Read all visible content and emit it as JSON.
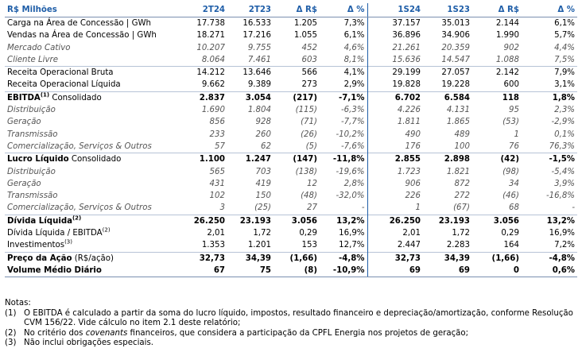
{
  "headers": {
    "label": "R$ Milhões",
    "cols": [
      "2T24",
      "2T23",
      "Δ R$",
      "Δ %",
      "1S24",
      "1S23",
      "Δ R$",
      "Δ %"
    ]
  },
  "rows": [
    {
      "label": "Carga na Área de Concessão | GWh",
      "vals": [
        "17.738",
        "16.533",
        "1.205",
        "7,3%",
        "37.157",
        "35.013",
        "2.144",
        "6,1%"
      ]
    },
    {
      "label": "Vendas na Área de Concessão | GWh",
      "vals": [
        "18.271",
        "17.216",
        "1.055",
        "6,1%",
        "36.896",
        "34.906",
        "1.990",
        "5,7%"
      ]
    },
    {
      "label": "Mercado Cativo",
      "vals": [
        "10.207",
        "9.755",
        "452",
        "4,6%",
        "21.261",
        "20.359",
        "902",
        "4,4%"
      ]
    },
    {
      "label": "Cliente Livre",
      "vals": [
        "8.064",
        "7.461",
        "603",
        "8,1%",
        "15.636",
        "14.547",
        "1.088",
        "7,5%"
      ]
    },
    {
      "label": "Receita Operacional Bruta",
      "vals": [
        "14.212",
        "13.646",
        "566",
        "4,1%",
        "29.199",
        "27.057",
        "2.142",
        "7,9%"
      ]
    },
    {
      "label": "Receita Operacional Líquida",
      "vals": [
        "9.662",
        "9.389",
        "273",
        "2,9%",
        "19.828",
        "19.228",
        "600",
        "3,1%"
      ]
    },
    {
      "label": "EBITDA",
      "sup": "(1)",
      "rest": " Consolidado",
      "vals": [
        "2.837",
        "3.054",
        "(217)",
        "-7,1%",
        "6.702",
        "6.584",
        "118",
        "1,8%"
      ]
    },
    {
      "label": "Distribuição",
      "vals": [
        "1.690",
        "1.804",
        "(115)",
        "-6,3%",
        "4.226",
        "4.131",
        "95",
        "2,3%"
      ]
    },
    {
      "label": "Geração",
      "vals": [
        "856",
        "928",
        "(71)",
        "-7,7%",
        "1.811",
        "1.865",
        "(53)",
        "-2,9%"
      ]
    },
    {
      "label": "Transmissão",
      "vals": [
        "233",
        "260",
        "(26)",
        "-10,2%",
        "490",
        "489",
        "1",
        "0,1%"
      ]
    },
    {
      "label": "Comercialização, Serviços & Outros",
      "vals": [
        "57",
        "62",
        "(5)",
        "-7,6%",
        "176",
        "100",
        "76",
        "76,3%"
      ]
    },
    {
      "label": "Lucro Líquido",
      "rest": " Consolidado",
      "vals": [
        "1.100",
        "1.247",
        "(147)",
        "-11,8%",
        "2.855",
        "2.898",
        "(42)",
        "-1,5%"
      ]
    },
    {
      "label": "Distribuição",
      "vals": [
        "565",
        "703",
        "(138)",
        "-19,6%",
        "1.723",
        "1.821",
        "(98)",
        "-5,4%"
      ]
    },
    {
      "label": "Geração",
      "vals": [
        "431",
        "419",
        "12",
        "2,8%",
        "906",
        "872",
        "34",
        "3,9%"
      ]
    },
    {
      "label": "Transmissão",
      "vals": [
        "102",
        "150",
        "(48)",
        "-32,0%",
        "226",
        "272",
        "(46)",
        "-16,8%"
      ]
    },
    {
      "label": "Comercialização, Serviços & Outros",
      "vals": [
        "3",
        "(25)",
        "27",
        "-",
        "1",
        "(67)",
        "68",
        "-"
      ]
    },
    {
      "label": "Dívida Líquida",
      "sup": "(2)",
      "vals": [
        "26.250",
        "23.193",
        "3.056",
        "13,2%",
        "26.250",
        "23.193",
        "3.056",
        "13,2%"
      ]
    },
    {
      "label": "Dívida Líquida / EBITDA",
      "sup": "(2)",
      "vals": [
        "2,01",
        "1,72",
        "0,29",
        "16,9%",
        "2,01",
        "1,72",
        "0,29",
        "16,9%"
      ]
    },
    {
      "label": "Investimentos",
      "sup": "(3)",
      "vals": [
        "1.353",
        "1.201",
        "153",
        "12,7%",
        "2.447",
        "2.283",
        "164",
        "7,2%"
      ]
    },
    {
      "label": "Preço da Ação",
      "rest": " (R$/ação)",
      "vals": [
        "32,73",
        "34,39",
        "(1,66)",
        "-4,8%",
        "32,73",
        "34,39",
        "(1,66)",
        "-4,8%"
      ]
    },
    {
      "label": "Volume Médio Diário",
      "vals": [
        "67",
        "75",
        "(8)",
        "-10,9%",
        "69",
        "69",
        "0",
        "0,6%"
      ]
    }
  ],
  "notes": {
    "title": "Notas:",
    "items": [
      {
        "mark": "(1)",
        "text": "O EBITDA é calculado a partir da soma do lucro líquido, impostos, resultado financeiro e depreciação/amortização, conforme Resolução CVM 156/22. Vide cálculo no item 2.1 deste relatório;"
      },
      {
        "mark": "(2)",
        "text_before": "No critério dos ",
        "text_em": "covenants",
        "text_after": " financeiros, que considera a participação da CPFL Energia nos projetos de geração;"
      },
      {
        "mark": "(3)",
        "text": "Não inclui obrigações especiais."
      }
    ]
  }
}
